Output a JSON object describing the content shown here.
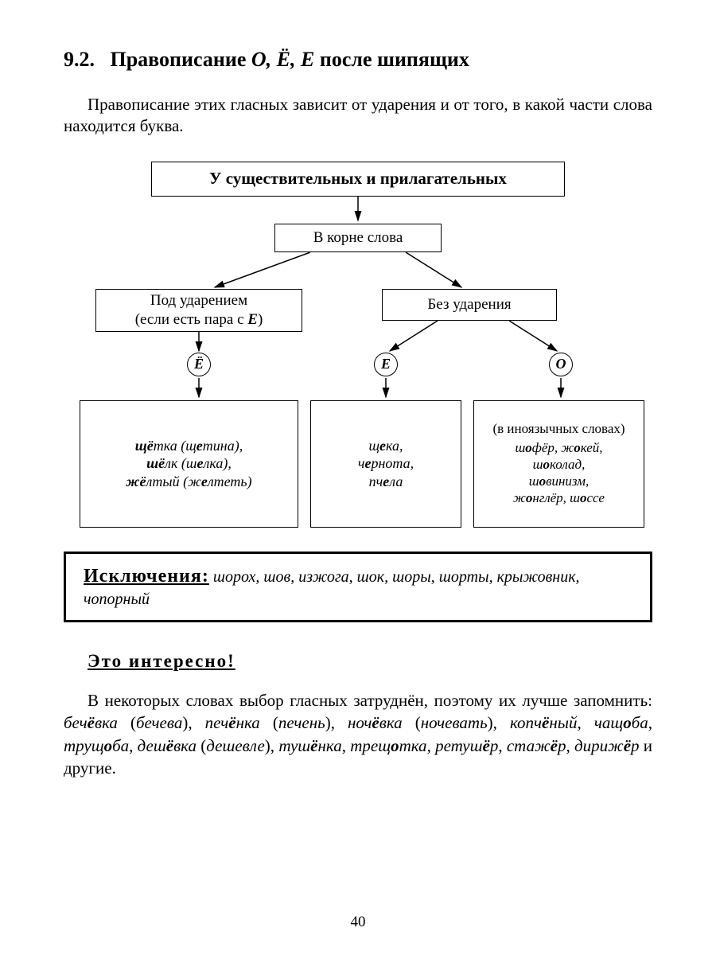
{
  "section_number": "9.2.",
  "section_title_pre": "Правописание ",
  "section_title_letters": "О, Ё, Е",
  "section_title_post": "  после шипящих",
  "intro": "Правописание этих гласных зависит от ударения и от того, в какой части слова находится буква.",
  "flow": {
    "top": "У существительных и прилагательных",
    "root": "В корне слова",
    "stressed_line1": "Под ударением",
    "stressed_line2_pre": "(если есть пара с ",
    "stressed_line2_e": "Е",
    "stressed_line2_post": ")",
    "unstressed": "Без ударения",
    "circle_yo": "Ё",
    "circle_e": "Е",
    "circle_o": "О",
    "ex_yo_html": "<span class='bolde'>щё</span>тка (щ<b>е</b>тина),<br><span class='bolde'>шё</span>лк (ш<b>е</b>лка),<br><span class='bolde'>жё</span>лтый (ж<b>е</b>лтеть)",
    "ex_e_html": "щ<b>е</b>ка,<br>ч<b>е</b>рнота,<br>пч<b>е</b>ла",
    "ex_o_note": "(в иноязычных словах)",
    "ex_o_html": "<i>ш<b>о</b>фёр, ж<b>о</b>кей,<br>ш<b>о</b>колад,<br>ш<b>о</b>винизм,<br>ж<b>о</b>нглёр, ш<b>о</b>ссе</i>"
  },
  "exceptions_label": "Исключения:",
  "exceptions_list": "шорох, шов, изжога, шок, шоры, шорты, крыжовник, чопорный",
  "interesting_title": "Это интересно!",
  "interesting_html": "В некоторых словах выбор гласных затруднён, поэтому их лучше запомнить: <i>беч<b>ё</b>вка</i> (<i>бечева</i>), <i>печ<b>ё</b>нка</i> (<i>печень</i>), <i>ноч<b>ё</b>вка</i> (<i>ночевать</i>), <i>копч<b>ё</b>ный</i>, <i>чащ<b>о</b>ба</i>, <i>трущ<b>о</b>ба</i>, <i>деш<b>ё</b>вка</i> (<i>дешевле</i>), <i>туш<b>ё</b>нка</i>, <i>трещ<b>о</b>тка</i>, <i>ретуш<b>ё</b>р</i>, <i>стаж<b>ё</b>р</i>, <i>дириж<b>ё</b>р</i> и другие.",
  "page_number": "40",
  "colors": {
    "text": "#000000",
    "bg": "#ffffff",
    "border": "#000000"
  }
}
